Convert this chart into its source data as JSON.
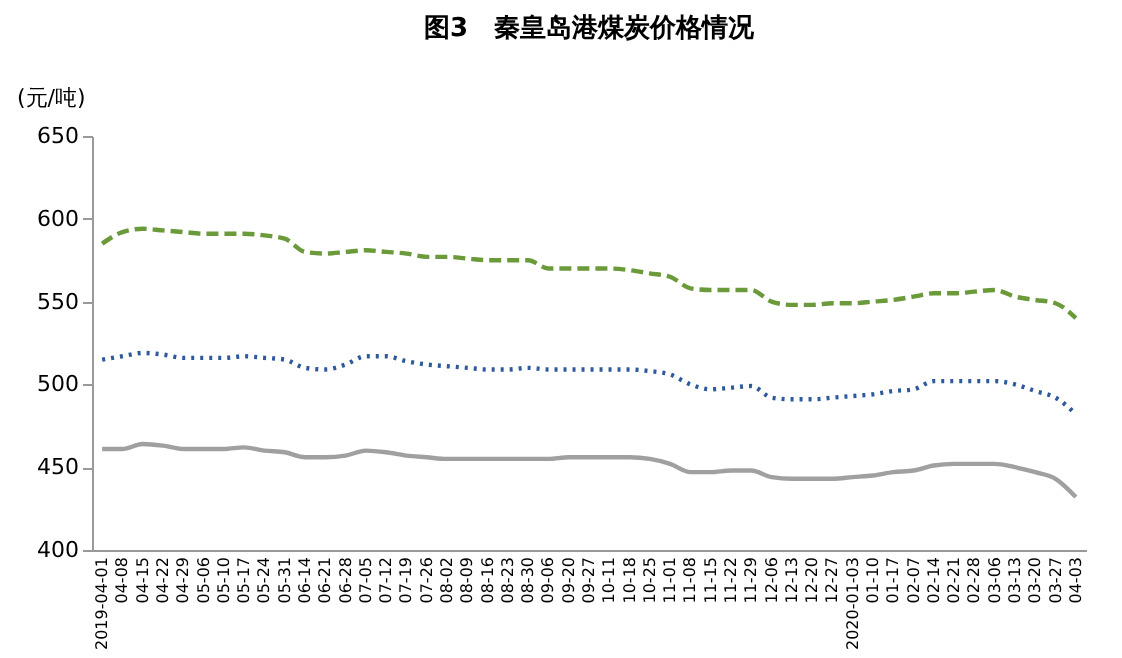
{
  "chart_data": {
    "type": "line",
    "title": "图3　秦皇岛港煤炭价格情况",
    "ylabel": "(元/吨)",
    "categories": [
      "2019-04-01",
      "04-08",
      "04-15",
      "04-22",
      "04-29",
      "05-06",
      "05-10",
      "05-17",
      "05-24",
      "05-31",
      "06-14",
      "06-21",
      "06-28",
      "07-05",
      "07-12",
      "07-19",
      "07-26",
      "08-02",
      "08-09",
      "08-16",
      "08-23",
      "08-30",
      "09-06",
      "09-20",
      "09-27",
      "10-11",
      "10-18",
      "10-25",
      "11-01",
      "11-08",
      "11-15",
      "11-22",
      "11-29",
      "12-06",
      "12-13",
      "12-20",
      "12-27",
      "2020-01-03",
      "01-10",
      "01-17",
      "02-07",
      "02-14",
      "02-21",
      "02-28",
      "03-06",
      "03-13",
      "03-20",
      "03-27",
      "04-03"
    ],
    "series": [
      {
        "color": "#6b9a3a",
        "line_style": "dashed",
        "values": [
          585,
          592,
          594,
          593,
          592,
          591,
          591,
          591,
          590,
          588,
          580,
          579,
          580,
          581,
          580,
          579,
          577,
          577,
          576,
          575,
          575,
          575,
          570,
          570,
          570,
          570,
          569,
          567,
          565,
          558,
          557,
          557,
          557,
          550,
          548,
          548,
          549,
          549,
          550,
          551,
          553,
          555,
          555,
          556,
          557,
          553,
          551,
          549,
          540
        ]
      },
      {
        "color": "#2e5a9c",
        "line_style": "dotted",
        "values": [
          515,
          517,
          519,
          518,
          516,
          516,
          516,
          517,
          516,
          515,
          510,
          509,
          512,
          517,
          517,
          514,
          512,
          511,
          510,
          509,
          509,
          510,
          509,
          509,
          509,
          509,
          509,
          508,
          506,
          500,
          497,
          498,
          499,
          492,
          491,
          491,
          492,
          493,
          494,
          496,
          497,
          502,
          502,
          502,
          502,
          500,
          496,
          492,
          482
        ]
      },
      {
        "color": "#a0a0a0",
        "line_style": "solid",
        "values": [
          461,
          461,
          464,
          463,
          461,
          461,
          461,
          462,
          460,
          459,
          456,
          456,
          457,
          460,
          459,
          457,
          456,
          455,
          455,
          455,
          455,
          455,
          455,
          456,
          456,
          456,
          456,
          455,
          452,
          447,
          447,
          448,
          448,
          444,
          443,
          443,
          443,
          444,
          445,
          447,
          448,
          451,
          452,
          452,
          452,
          450,
          447,
          443,
          432
        ]
      }
    ],
    "ylim": [
      400,
      650
    ],
    "yticks": [
      400,
      450,
      500,
      550,
      600,
      650
    ],
    "grid": false,
    "legend": false
  }
}
